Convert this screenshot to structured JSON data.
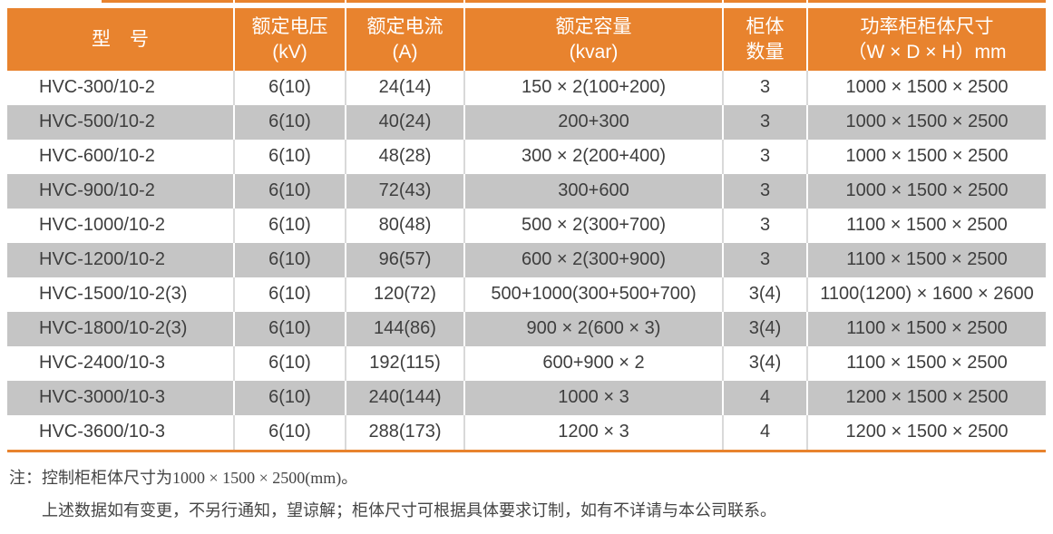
{
  "colors": {
    "header_orange": "#e8832e",
    "header_text": "#ffffff",
    "row_gray": "#c5c5c5",
    "row_white": "#ffffff",
    "body_text": "#3e3e3e",
    "separator_light": "#d9d9d9",
    "note_text": "#454545"
  },
  "table": {
    "columns": [
      {
        "title": "型　号",
        "sub": ""
      },
      {
        "title": "额定电压",
        "sub": "(kV)"
      },
      {
        "title": "额定电流",
        "sub": "(A)"
      },
      {
        "title": "额定容量",
        "sub": "(kvar)"
      },
      {
        "title": "柜体",
        "sub": "数量"
      },
      {
        "title": "功率柜柜体尺寸",
        "sub": "（W × D × H）mm"
      }
    ],
    "rows": [
      {
        "model": "HVC-300/10-2",
        "voltage": "6(10)",
        "current": "24(14)",
        "capacity": "150 × 2(100+200)",
        "cabinets": "3",
        "dimensions": "1000 × 1500 × 2500"
      },
      {
        "model": "HVC-500/10-2",
        "voltage": "6(10)",
        "current": "40(24)",
        "capacity": "200+300",
        "cabinets": "3",
        "dimensions": "1000 × 1500 × 2500"
      },
      {
        "model": "HVC-600/10-2",
        "voltage": "6(10)",
        "current": "48(28)",
        "capacity": "300 × 2(200+400)",
        "cabinets": "3",
        "dimensions": "1000 × 1500 × 2500"
      },
      {
        "model": "HVC-900/10-2",
        "voltage": "6(10)",
        "current": "72(43)",
        "capacity": "300+600",
        "cabinets": "3",
        "dimensions": "1000 × 1500 × 2500"
      },
      {
        "model": "HVC-1000/10-2",
        "voltage": "6(10)",
        "current": "80(48)",
        "capacity": "500 × 2(300+700)",
        "cabinets": "3",
        "dimensions": "1100 × 1500 × 2500"
      },
      {
        "model": "HVC-1200/10-2",
        "voltage": "6(10)",
        "current": "96(57)",
        "capacity": "600 × 2(300+900)",
        "cabinets": "3",
        "dimensions": "1100 × 1500 × 2500"
      },
      {
        "model": "HVC-1500/10-2(3)",
        "voltage": "6(10)",
        "current": "120(72)",
        "capacity": "500+1000(300+500+700)",
        "cabinets": "3(4)",
        "dimensions": "1100(1200) × 1600 × 2600"
      },
      {
        "model": "HVC-1800/10-2(3)",
        "voltage": "6(10)",
        "current": "144(86)",
        "capacity": "900 × 2(600 × 3)",
        "cabinets": "3(4)",
        "dimensions": "1100 × 1500 × 2500"
      },
      {
        "model": "HVC-2400/10-3",
        "voltage": "6(10)",
        "current": "192(115)",
        "capacity": "600+900 × 2",
        "cabinets": "3(4)",
        "dimensions": "1100 × 1500 × 2500"
      },
      {
        "model": "HVC-3000/10-3",
        "voltage": "6(10)",
        "current": "240(144)",
        "capacity": "1000 × 3",
        "cabinets": "4",
        "dimensions": "1200 × 1500 × 2500"
      },
      {
        "model": "HVC-3600/10-3",
        "voltage": "6(10)",
        "current": "288(173)",
        "capacity": "1200 × 3",
        "cabinets": "4",
        "dimensions": "1200 × 1500 × 2500"
      }
    ]
  },
  "notes": {
    "line1_prefix": "注：",
    "line1": "控制柜柜体尺寸为1000 × 1500 × 2500(mm)。",
    "line2": "上述数据如有变更，不另行通知，望谅解；柜体尺寸可根据具体要求订制，如有不详请与本公司联系。"
  }
}
